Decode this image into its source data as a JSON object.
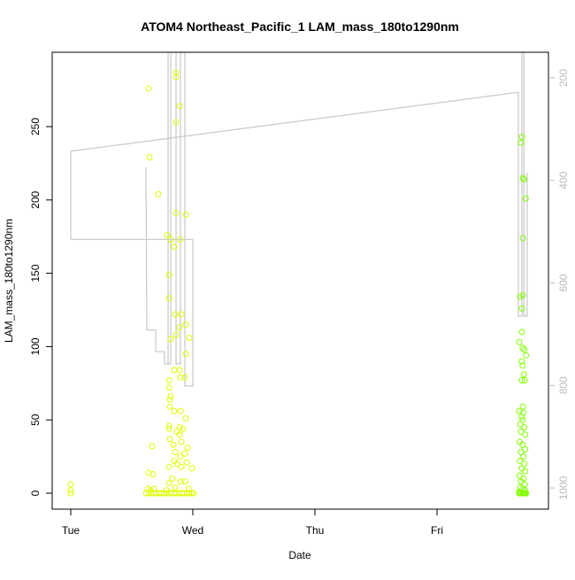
{
  "chart_data": {
    "type": "scatter",
    "title": "ATOM4 Northeast_Pacific_1 LAM_mass_180to1290nm",
    "xlabel": "Date",
    "ylabel": "LAM_mass_180to1290nm",
    "x_ticks": [
      "Tue",
      "Wed",
      "Thu",
      "Fri"
    ],
    "y_ticks": [
      0,
      50,
      100,
      150,
      200,
      250
    ],
    "y_lim": [
      0,
      297
    ],
    "right_axis": {
      "ticks": [
        200,
        400,
        600,
        800,
        1000
      ],
      "lim": [
        150,
        1010
      ],
      "reversed": true,
      "color": "#BBBBBB"
    },
    "grid": false,
    "series": [
      {
        "color": "#DFFF00",
        "points": [
          [
            "Tue 00:00",
            0
          ],
          [
            "Tue 00:00",
            2
          ],
          [
            "Tue 00:00",
            6
          ],
          [
            "Tue 15:18",
            276
          ],
          [
            "Tue 15:29",
            229
          ],
          [
            "Tue 17:13",
            204
          ],
          [
            "Tue 18:58",
            176
          ],
          [
            "Tue 19:19",
            149
          ],
          [
            "Tue 19:19",
            133
          ],
          [
            "Tue 20:42",
            287
          ],
          [
            "Tue 20:42",
            284
          ],
          [
            "Tue 21:24",
            264
          ],
          [
            "Tue 20:42",
            253
          ],
          [
            "Tue 20:42",
            191
          ],
          [
            "Tue 22:37",
            190
          ],
          [
            "Tue 21:34",
            173
          ],
          [
            "Tue 20:21",
            168
          ],
          [
            "Tue 19:39",
            173
          ],
          [
            "Tue 21:45",
            122
          ],
          [
            "Tue 22:37",
            115
          ],
          [
            "Tue 20:31",
            122
          ],
          [
            "Tue 20:42",
            108
          ],
          [
            "Tue 19:39",
            105
          ],
          [
            "Tue 21:24",
            113
          ],
          [
            "Tue 23:18",
            106
          ],
          [
            "Tue 22:37",
            95
          ],
          [
            "Tue 20:21",
            84
          ],
          [
            "Tue 21:24",
            84
          ],
          [
            "Tue 22:26",
            79
          ],
          [
            "Tue 21:34",
            79
          ],
          [
            "Tue 19:19",
            77
          ],
          [
            "Tue 19:19",
            72
          ],
          [
            "Tue 19:39",
            66
          ],
          [
            "Tue 19:29",
            64
          ],
          [
            "Tue 19:29",
            59
          ],
          [
            "Tue 20:21",
            56
          ],
          [
            "Tue 21:34",
            56
          ],
          [
            "Tue 22:37",
            51
          ],
          [
            "Tue 19:19",
            46
          ],
          [
            "Tue 21:24",
            45
          ],
          [
            "Tue 22:06",
            44
          ],
          [
            "Tue 19:19",
            44
          ],
          [
            "Tue 20:52",
            42
          ],
          [
            "Tue 21:24",
            40
          ],
          [
            "Tue 22:58",
            31
          ],
          [
            "Tue 16:00",
            32
          ],
          [
            "Tue 20:11",
            33
          ],
          [
            "Tue 19:29",
            37
          ],
          [
            "Tue 21:45",
            35
          ],
          [
            "Tue 20:31",
            28
          ],
          [
            "Tue 21:34",
            25
          ],
          [
            "Tue 22:26",
            27
          ],
          [
            "Tue 20:21",
            22
          ],
          [
            "Tue 22:47",
            21
          ],
          [
            "Tue 20:52",
            20
          ],
          [
            "Tue 19:19",
            18
          ],
          [
            "Tue 21:45",
            18
          ],
          [
            "Tue 23:50",
            17
          ],
          [
            "Tue 15:18",
            14
          ],
          [
            "Tue 16:11",
            13
          ],
          [
            "Tue 20:00",
            10
          ],
          [
            "Tue 22:26",
            8
          ],
          [
            "Tue 19:19",
            7
          ],
          [
            "Tue 21:34",
            8
          ],
          [
            "Tue 15:10",
            3
          ],
          [
            "Tue 15:40",
            2
          ],
          [
            "Tue 16:20",
            3
          ],
          [
            "Tue 18:50",
            2
          ],
          [
            "Tue 20:30",
            4
          ],
          [
            "Tue 23:10",
            3
          ],
          [
            "Tue 14:50",
            0
          ],
          [
            "Tue 15:20",
            0
          ],
          [
            "Tue 15:50",
            0
          ],
          [
            "Tue 16:20",
            0
          ],
          [
            "Tue 16:50",
            0
          ],
          [
            "Tue 17:20",
            0
          ],
          [
            "Tue 17:50",
            0
          ],
          [
            "Tue 18:20",
            0
          ],
          [
            "Tue 18:50",
            0
          ],
          [
            "Tue 19:20",
            0
          ],
          [
            "Tue 19:50",
            0
          ],
          [
            "Tue 20:20",
            0
          ],
          [
            "Tue 20:50",
            0
          ],
          [
            "Tue 21:20",
            0
          ],
          [
            "Tue 21:50",
            0
          ],
          [
            "Tue 22:20",
            0
          ],
          [
            "Tue 22:50",
            0
          ],
          [
            "Tue 23:20",
            0
          ],
          [
            "Tue 23:50",
            0
          ],
          [
            "Wed 00:10",
            0
          ]
        ]
      },
      {
        "color": "#80FF00",
        "points": [
          [
            "Fri 16:42",
            243
          ],
          [
            "Fri 16:32",
            239
          ],
          [
            "Fri 16:53",
            215
          ],
          [
            "Fri 17:05",
            214
          ],
          [
            "Fri 17:26",
            201
          ],
          [
            "Fri 16:53",
            174
          ],
          [
            "Fri 16:21",
            134
          ],
          [
            "Fri 16:53",
            135
          ],
          [
            "Fri 16:42",
            126
          ],
          [
            "Fri 16:42",
            110
          ],
          [
            "Fri 16:11",
            103
          ],
          [
            "Fri 16:50",
            99
          ],
          [
            "Fri 17:10",
            98
          ],
          [
            "Fri 17:30",
            94
          ],
          [
            "Fri 16:40",
            90
          ],
          [
            "Fri 16:50",
            87
          ],
          [
            "Fri 17:05",
            81
          ],
          [
            "Fri 16:40",
            77
          ],
          [
            "Fri 17:15",
            77
          ],
          [
            "Fri 16:53",
            59
          ],
          [
            "Fri 16:11",
            56
          ],
          [
            "Fri 17:00",
            55
          ],
          [
            "Fri 16:40",
            52
          ],
          [
            "Fri 16:50",
            50
          ],
          [
            "Fri 16:20",
            47
          ],
          [
            "Fri 17:10",
            45
          ],
          [
            "Fri 16:30",
            42
          ],
          [
            "Fri 17:20",
            40
          ],
          [
            "Fri 16:15",
            35
          ],
          [
            "Fri 16:50",
            33
          ],
          [
            "Fri 17:20",
            30
          ],
          [
            "Fri 16:30",
            28
          ],
          [
            "Fri 17:00",
            25
          ],
          [
            "Fri 16:20",
            22
          ],
          [
            "Fri 17:10",
            20
          ],
          [
            "Fri 16:40",
            17
          ],
          [
            "Fri 17:20",
            15
          ],
          [
            "Fri 16:15",
            12
          ],
          [
            "Fri 17:00",
            10
          ],
          [
            "Fri 16:30",
            8
          ],
          [
            "Fri 17:15",
            6
          ],
          [
            "Fri 16:20",
            4
          ],
          [
            "Fri 16:50",
            3
          ],
          [
            "Fri 17:20",
            2
          ],
          [
            "Fri 16:10",
            1
          ],
          [
            "Fri 16:10",
            0
          ],
          [
            "Fri 16:30",
            0
          ],
          [
            "Fri 16:50",
            0
          ],
          [
            "Fri 17:10",
            0
          ],
          [
            "Fri 17:30",
            0
          ],
          [
            "Fri 16:20",
            0
          ],
          [
            "Fri 17:00",
            0
          ],
          [
            "Fri 17:20",
            0
          ]
        ]
      }
    ],
    "line_series": {
      "axis": "right",
      "color": "#C8C8C8",
      "paths": [
        [
          [
            "Tue 00:00",
            343
          ],
          [
            "Fri 16:00",
            228
          ],
          [
            "Fri 16:00",
            665
          ],
          [
            "Fri 16:42",
            665
          ],
          [
            "Fri 16:42",
            150
          ],
          [
            "Fri 17:05",
            150
          ],
          [
            "Fri 17:05",
            665
          ],
          [
            "Fri 17:44",
            665
          ],
          [
            "Fri 17:44",
            385
          ]
        ],
        [
          [
            "Tue 00:00",
            343
          ],
          [
            "Tue 00:00",
            515
          ],
          [
            "Wed 00:00",
            515
          ],
          [
            "Wed 00:00",
            801
          ],
          [
            "Tue 22:26",
            801
          ],
          [
            "Tue 22:26",
            150
          ],
          [
            "Tue 21:34",
            150
          ],
          [
            "Tue 21:34",
            758
          ],
          [
            "Tue 20:42",
            758
          ],
          [
            "Tue 20:42",
            150
          ],
          [
            "Tue 19:39",
            150
          ],
          [
            "Tue 19:39",
            758
          ],
          [
            "Tue 19:08",
            758
          ],
          [
            "Tue 19:08",
            150
          ]
        ],
        [
          [
            "Tue 14:47",
            374
          ],
          [
            "Tue 14:57",
            692
          ],
          [
            "Tue 16:42",
            692
          ],
          [
            "Tue 16:42",
            734
          ],
          [
            "Tue 18:26",
            734
          ],
          [
            "Tue 18:26",
            758
          ],
          [
            "Tue 19:08",
            758
          ]
        ]
      ]
    }
  }
}
